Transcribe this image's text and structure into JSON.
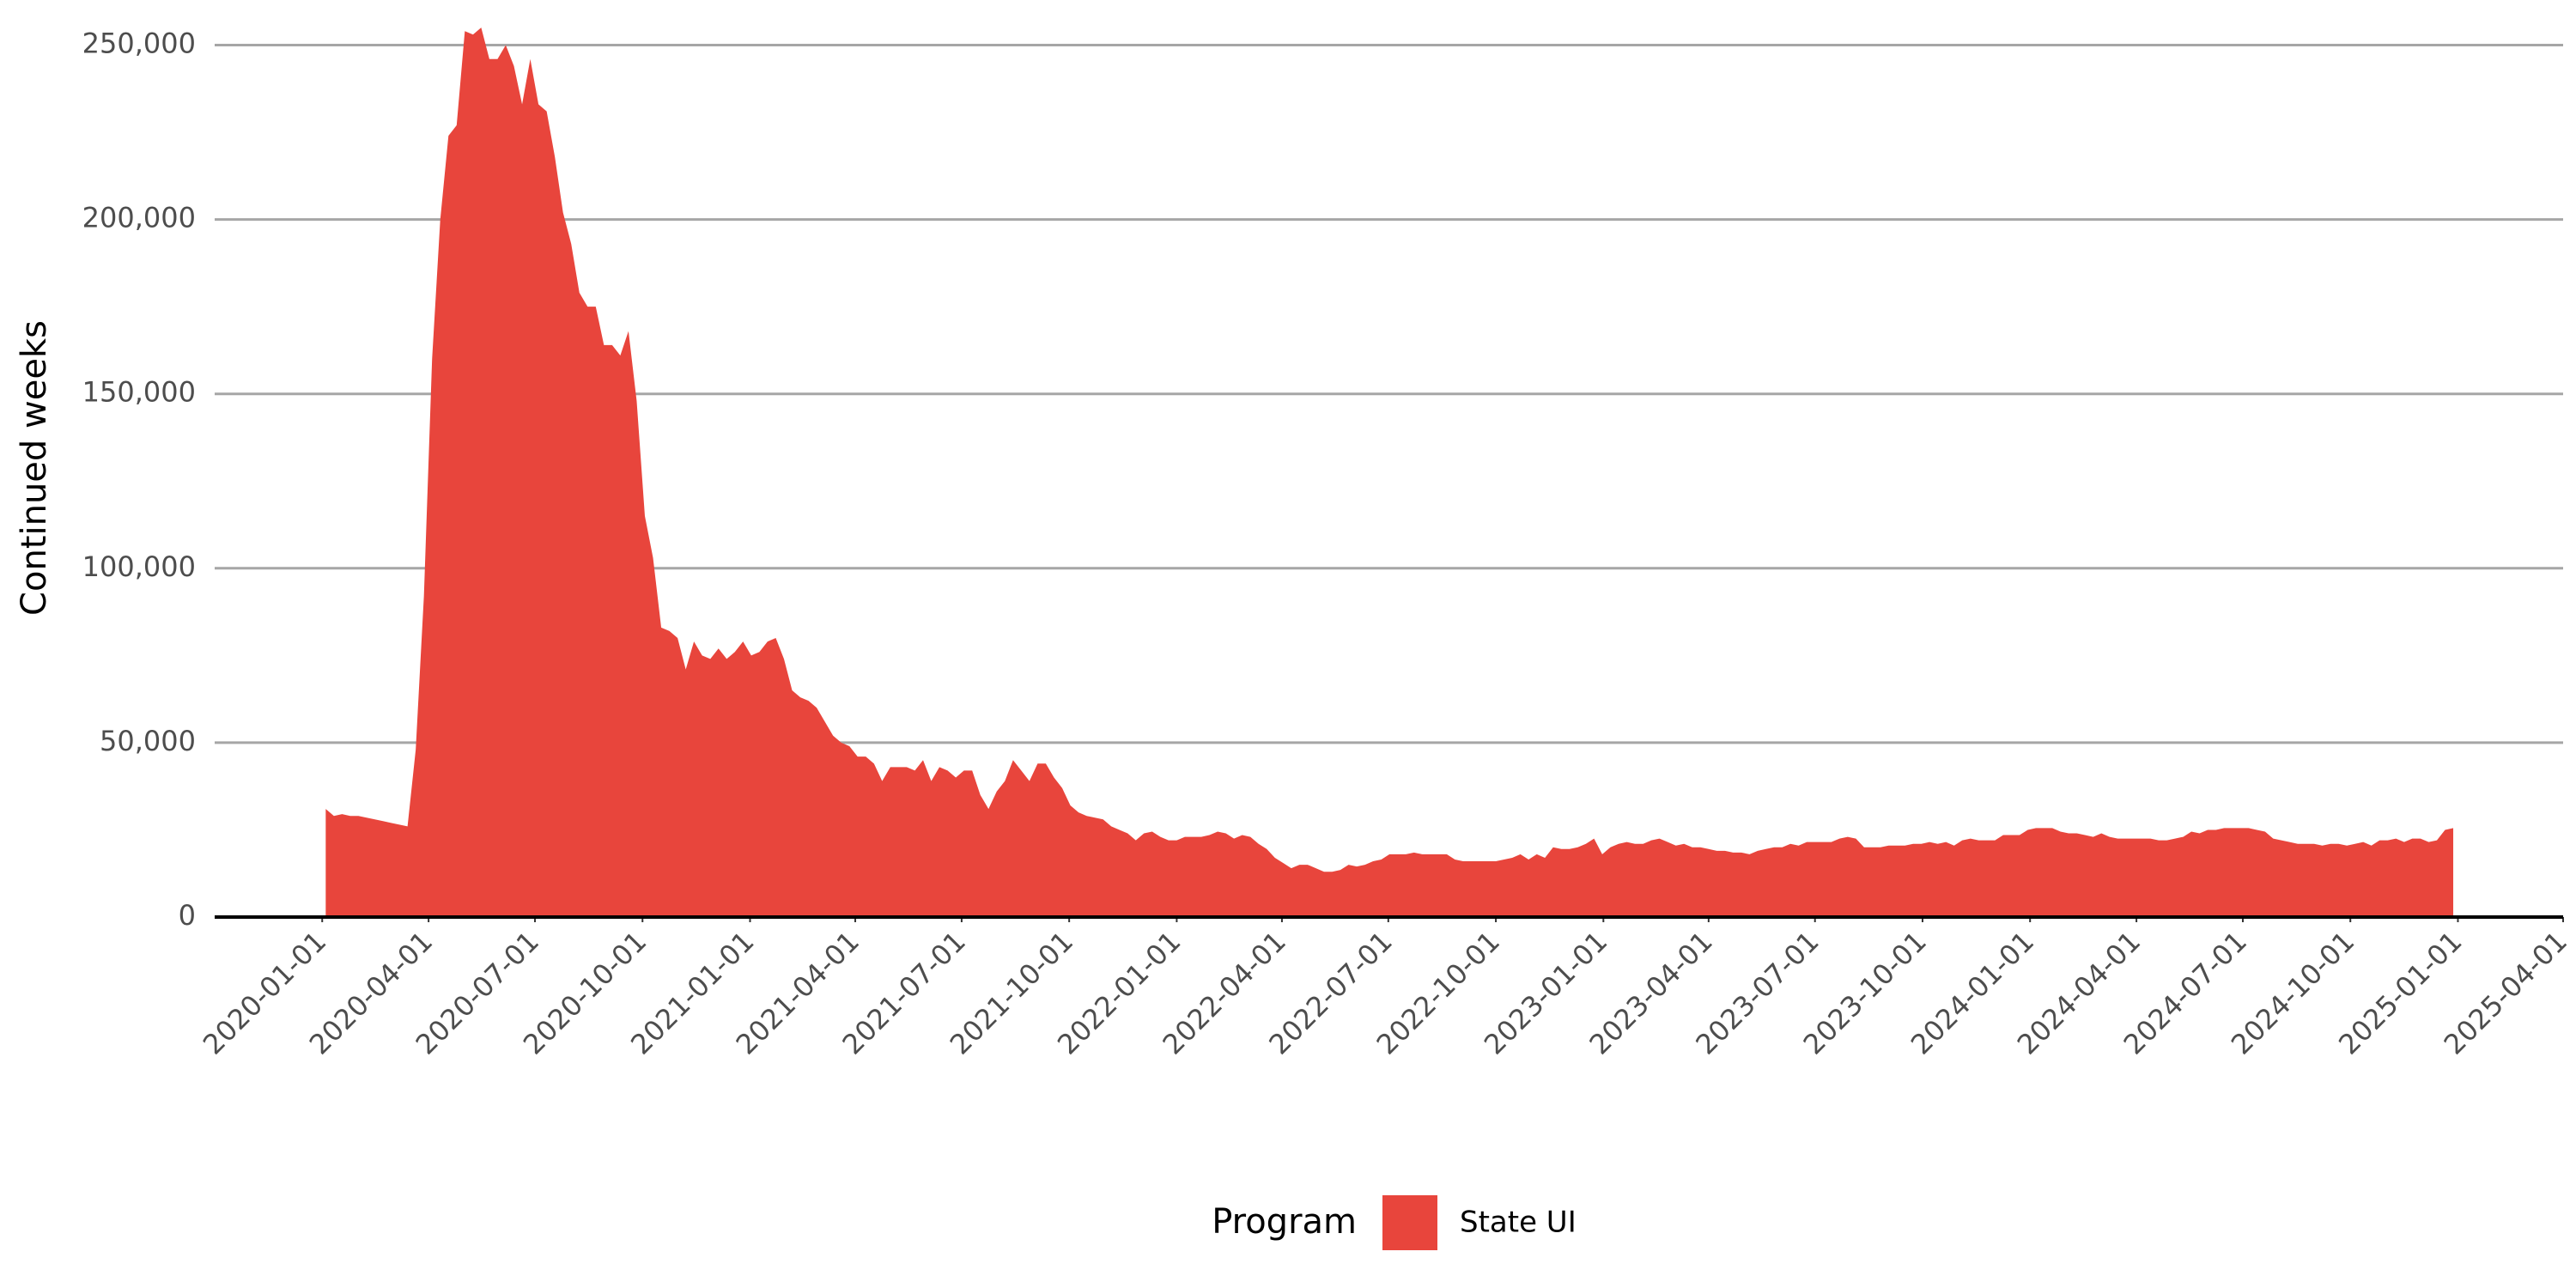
{
  "chart_data": {
    "type": "area",
    "y_label": "Continued weeks",
    "legend_title": "Program",
    "legend_position": "bottom",
    "grid": true,
    "xlim": [
      "2019-10-01",
      "2025-04-01"
    ],
    "xticks": [
      "2020-01-01",
      "2020-04-01",
      "2020-07-01",
      "2020-10-01",
      "2021-01-01",
      "2021-04-01",
      "2021-07-01",
      "2021-10-01",
      "2022-01-01",
      "2022-04-01",
      "2022-07-01",
      "2022-10-01",
      "2023-01-01",
      "2023-04-01",
      "2023-07-01",
      "2023-10-01",
      "2024-01-01",
      "2024-04-01",
      "2024-07-01",
      "2024-10-01",
      "2025-01-01",
      "2025-04-01"
    ],
    "ylim": [
      0,
      258000
    ],
    "yticks": [
      0,
      {
        "value": 50000,
        "label": "50,000"
      },
      {
        "value": 100000,
        "label": "100,000"
      },
      {
        "value": 150000,
        "label": "150,000"
      },
      {
        "value": 200000,
        "label": "200,000"
      },
      {
        "value": 250000,
        "label": "250,000"
      }
    ],
    "x": [
      "2020-01-04",
      "2020-01-11",
      "2020-01-18",
      "2020-01-25",
      "2020-02-01",
      "2020-02-08",
      "2020-02-15",
      "2020-02-22",
      "2020-02-29",
      "2020-03-07",
      "2020-03-14",
      "2020-03-21",
      "2020-03-28",
      "2020-04-04",
      "2020-04-11",
      "2020-04-18",
      "2020-04-25",
      "2020-05-02",
      "2020-05-09",
      "2020-05-16",
      "2020-05-23",
      "2020-05-30",
      "2020-06-06",
      "2020-06-13",
      "2020-06-20",
      "2020-06-27",
      "2020-07-04",
      "2020-07-11",
      "2020-07-18",
      "2020-07-25",
      "2020-08-01",
      "2020-08-08",
      "2020-08-15",
      "2020-08-22",
      "2020-08-29",
      "2020-09-05",
      "2020-09-12",
      "2020-09-19",
      "2020-09-26",
      "2020-10-03",
      "2020-10-10",
      "2020-10-17",
      "2020-10-24",
      "2020-10-31",
      "2020-11-07",
      "2020-11-14",
      "2020-11-21",
      "2020-11-28",
      "2020-12-05",
      "2020-12-12",
      "2020-12-19",
      "2020-12-26",
      "2021-01-02",
      "2021-01-09",
      "2021-01-16",
      "2021-01-23",
      "2021-01-30",
      "2021-02-06",
      "2021-02-13",
      "2021-02-20",
      "2021-02-27",
      "2021-03-06",
      "2021-03-13",
      "2021-03-20",
      "2021-03-27",
      "2021-04-03",
      "2021-04-10",
      "2021-04-17",
      "2021-04-24",
      "2021-05-01",
      "2021-05-08",
      "2021-05-15",
      "2021-05-22",
      "2021-05-29",
      "2021-06-05",
      "2021-06-12",
      "2021-06-19",
      "2021-06-26",
      "2021-07-03",
      "2021-07-10",
      "2021-07-17",
      "2021-07-24",
      "2021-07-31",
      "2021-08-07",
      "2021-08-14",
      "2021-08-21",
      "2021-08-28",
      "2021-09-04",
      "2021-09-11",
      "2021-09-18",
      "2021-09-25",
      "2021-10-02",
      "2021-10-09",
      "2021-10-16",
      "2021-10-23",
      "2021-10-30",
      "2021-11-06",
      "2021-11-13",
      "2021-11-20",
      "2021-11-27",
      "2021-12-04",
      "2021-12-11",
      "2021-12-18",
      "2021-12-25",
      "2022-01-01",
      "2022-01-08",
      "2022-01-15",
      "2022-01-22",
      "2022-01-29",
      "2022-02-05",
      "2022-02-12",
      "2022-02-19",
      "2022-02-26",
      "2022-03-05",
      "2022-03-12",
      "2022-03-19",
      "2022-03-26",
      "2022-04-02",
      "2022-04-09",
      "2022-04-16",
      "2022-04-23",
      "2022-04-30",
      "2022-05-07",
      "2022-05-14",
      "2022-05-21",
      "2022-05-28",
      "2022-06-04",
      "2022-06-11",
      "2022-06-18",
      "2022-06-25",
      "2022-07-02",
      "2022-07-09",
      "2022-07-16",
      "2022-07-23",
      "2022-07-30",
      "2022-08-06",
      "2022-08-13",
      "2022-08-20",
      "2022-08-27",
      "2022-09-03",
      "2022-09-10",
      "2022-09-17",
      "2022-09-24",
      "2022-10-01",
      "2022-10-08",
      "2022-10-15",
      "2022-10-22",
      "2022-10-29",
      "2022-11-05",
      "2022-11-12",
      "2022-11-19",
      "2022-11-26",
      "2022-12-03",
      "2022-12-10",
      "2022-12-17",
      "2022-12-24",
      "2022-12-31",
      "2023-01-07",
      "2023-01-14",
      "2023-01-21",
      "2023-01-28",
      "2023-02-04",
      "2023-02-11",
      "2023-02-18",
      "2023-02-25",
      "2023-03-04",
      "2023-03-11",
      "2023-03-18",
      "2023-03-25",
      "2023-04-01",
      "2023-04-08",
      "2023-04-15",
      "2023-04-22",
      "2023-04-29",
      "2023-05-06",
      "2023-05-13",
      "2023-05-20",
      "2023-05-27",
      "2023-06-03",
      "2023-06-10",
      "2023-06-17",
      "2023-06-24",
      "2023-07-01",
      "2023-07-08",
      "2023-07-15",
      "2023-07-22",
      "2023-07-29",
      "2023-08-05",
      "2023-08-12",
      "2023-08-19",
      "2023-08-26",
      "2023-09-02",
      "2023-09-09",
      "2023-09-16",
      "2023-09-23",
      "2023-09-30",
      "2023-10-07",
      "2023-10-14",
      "2023-10-21",
      "2023-10-28",
      "2023-11-04",
      "2023-11-11",
      "2023-11-18",
      "2023-11-25",
      "2023-12-02",
      "2023-12-09",
      "2023-12-16",
      "2023-12-23",
      "2023-12-30",
      "2024-01-06",
      "2024-01-13",
      "2024-01-20",
      "2024-01-27",
      "2024-02-03",
      "2024-02-10",
      "2024-02-17",
      "2024-02-24",
      "2024-03-02",
      "2024-03-09",
      "2024-03-16",
      "2024-03-23",
      "2024-03-30",
      "2024-04-06",
      "2024-04-13",
      "2024-04-20",
      "2024-04-27",
      "2024-05-04",
      "2024-05-11",
      "2024-05-18",
      "2024-05-25",
      "2024-06-01",
      "2024-06-08",
      "2024-06-15",
      "2024-06-22",
      "2024-06-29",
      "2024-07-06",
      "2024-07-13",
      "2024-07-20",
      "2024-07-27",
      "2024-08-03",
      "2024-08-10",
      "2024-08-17",
      "2024-08-24",
      "2024-08-31",
      "2024-09-07",
      "2024-09-14",
      "2024-09-21",
      "2024-09-28",
      "2024-10-05",
      "2024-10-12",
      "2024-10-19",
      "2024-10-26",
      "2024-11-02",
      "2024-11-09",
      "2024-11-16",
      "2024-11-23",
      "2024-11-30",
      "2024-12-07",
      "2024-12-14",
      "2024-12-21",
      "2024-12-28"
    ],
    "series": [
      {
        "name": "State UI",
        "color": "#e8453c",
        "values": [
          31000,
          29000,
          29500,
          29000,
          29000,
          28500,
          28000,
          27500,
          27000,
          26500,
          26000,
          48000,
          92000,
          160000,
          200000,
          224000,
          227000,
          254000,
          253000,
          255000,
          246000,
          246000,
          250000,
          244000,
          233000,
          246000,
          233000,
          231000,
          218000,
          202000,
          193000,
          179000,
          175000,
          175000,
          164000,
          164000,
          161000,
          168000,
          148000,
          115000,
          103000,
          83000,
          82000,
          80000,
          71000,
          79000,
          75000,
          74000,
          77000,
          74000,
          76000,
          79000,
          75000,
          76000,
          79000,
          80000,
          74000,
          65000,
          63000,
          62000,
          60000,
          56000,
          52000,
          50000,
          49000,
          46000,
          46000,
          44000,
          39000,
          43000,
          43000,
          43000,
          42000,
          45000,
          39000,
          43000,
          42000,
          40000,
          42000,
          42000,
          35000,
          31000,
          36000,
          39000,
          45000,
          42000,
          39000,
          44000,
          44000,
          40000,
          37000,
          32000,
          30000,
          29000,
          28500,
          28000,
          26000,
          25000,
          24000,
          22000,
          24000,
          24500,
          23000,
          22000,
          22000,
          23000,
          23000,
          23000,
          23500,
          24500,
          24000,
          22500,
          23500,
          23000,
          21000,
          19500,
          17000,
          15500,
          14000,
          15000,
          15000,
          14000,
          13000,
          13000,
          13500,
          15000,
          14500,
          15000,
          16000,
          16500,
          18000,
          18000,
          18000,
          18500,
          18000,
          18000,
          18000,
          18000,
          16500,
          16000,
          16000,
          16000,
          16000,
          16000,
          16500,
          17000,
          18000,
          16500,
          18000,
          17000,
          20000,
          19500,
          19500,
          20000,
          21000,
          22500,
          18000,
          20000,
          21000,
          21500,
          21000,
          21000,
          22000,
          22500,
          21500,
          20500,
          21000,
          20000,
          20000,
          19500,
          19000,
          19000,
          18500,
          18500,
          18000,
          19000,
          19500,
          20000,
          20000,
          21000,
          20500,
          21500,
          21500,
          21500,
          21500,
          22500,
          23000,
          22500,
          20000,
          20000,
          20000,
          20500,
          20500,
          20500,
          21000,
          21000,
          21500,
          21000,
          21500,
          20500,
          22000,
          22500,
          22000,
          22000,
          22000,
          23500,
          23500,
          23500,
          25000,
          25500,
          25500,
          25500,
          24500,
          24000,
          24000,
          23500,
          23000,
          24000,
          23000,
          22500,
          22500,
          22500,
          22500,
          22500,
          22000,
          22000,
          22500,
          23000,
          24500,
          24000,
          25000,
          25000,
          25500,
          25500,
          25500,
          25500,
          25000,
          24500,
          22500,
          22000,
          21500,
          21000,
          21000,
          21000,
          20500,
          21000,
          21000,
          20500,
          21000,
          21500,
          20500,
          22000,
          22000,
          22500,
          21500,
          22500,
          22500,
          21500,
          22000,
          25000,
          25500
        ]
      }
    ]
  }
}
